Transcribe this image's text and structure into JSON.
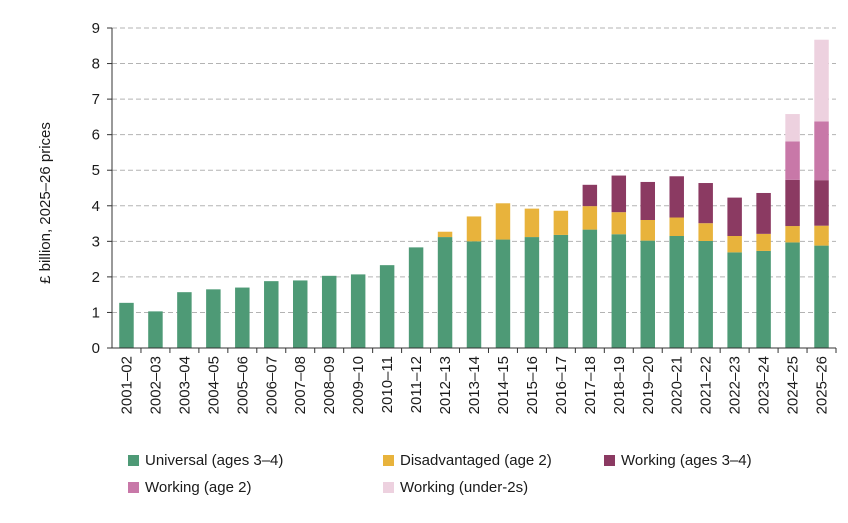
{
  "chart_data": {
    "type": "bar",
    "stacked": true,
    "title": "",
    "xlabel": "",
    "ylabel": "£ billion, 2025–26 prices",
    "ylim": [
      0,
      9
    ],
    "yticks": [
      "0",
      "1",
      "2",
      "3",
      "4",
      "5",
      "6",
      "7",
      "8",
      "9"
    ],
    "grid": true,
    "legend_position": "bottom",
    "categories": [
      "2001–02",
      "2002–03",
      "2003–04",
      "2004–05",
      "2005–06",
      "2006–07",
      "2007–08",
      "2008–09",
      "2009–10",
      "2010–11",
      "2011–12",
      "2012–13",
      "2013–14",
      "2014–15",
      "2015–16",
      "2016–17",
      "2017–18",
      "2018–19",
      "2019–20",
      "2020–21",
      "2021–22",
      "2022–23",
      "2023–24",
      "2024–25",
      "2025–26"
    ],
    "series": [
      {
        "name": "Universal (ages 3–4)",
        "color": "#4E9A76",
        "values": [
          1.27,
          1.03,
          1.57,
          1.65,
          1.7,
          1.88,
          1.9,
          2.03,
          2.07,
          2.33,
          2.83,
          3.12,
          3.0,
          3.05,
          3.12,
          3.18,
          3.33,
          3.2,
          3.02,
          3.15,
          3.01,
          2.69,
          2.73,
          2.97,
          2.88
        ]
      },
      {
        "name": "Disadvantaged (age 2)",
        "color": "#E8B33C",
        "values": [
          0,
          0,
          0,
          0,
          0,
          0,
          0,
          0,
          0,
          0,
          0,
          0.15,
          0.7,
          1.02,
          0.8,
          0.68,
          0.66,
          0.62,
          0.58,
          0.52,
          0.5,
          0.46,
          0.48,
          0.46,
          0.56
        ]
      },
      {
        "name": "Working (ages 3–4)",
        "color": "#8B3A62",
        "values": [
          0,
          0,
          0,
          0,
          0,
          0,
          0,
          0,
          0,
          0,
          0,
          0,
          0,
          0,
          0,
          0,
          0.6,
          1.03,
          1.07,
          1.16,
          1.13,
          1.08,
          1.15,
          1.3,
          1.28
        ]
      },
      {
        "name": "Working (age 2)",
        "color": "#C878A8",
        "values": [
          0,
          0,
          0,
          0,
          0,
          0,
          0,
          0,
          0,
          0,
          0,
          0,
          0,
          0,
          0,
          0,
          0,
          0,
          0,
          0,
          0,
          0,
          0,
          1.08,
          1.65
        ]
      },
      {
        "name": "Working (under-2s)",
        "color": "#EDD1DF",
        "values": [
          0,
          0,
          0,
          0,
          0,
          0,
          0,
          0,
          0,
          0,
          0,
          0,
          0,
          0,
          0,
          0,
          0,
          0,
          0,
          0,
          0,
          0,
          0,
          0.77,
          2.3
        ]
      }
    ]
  }
}
